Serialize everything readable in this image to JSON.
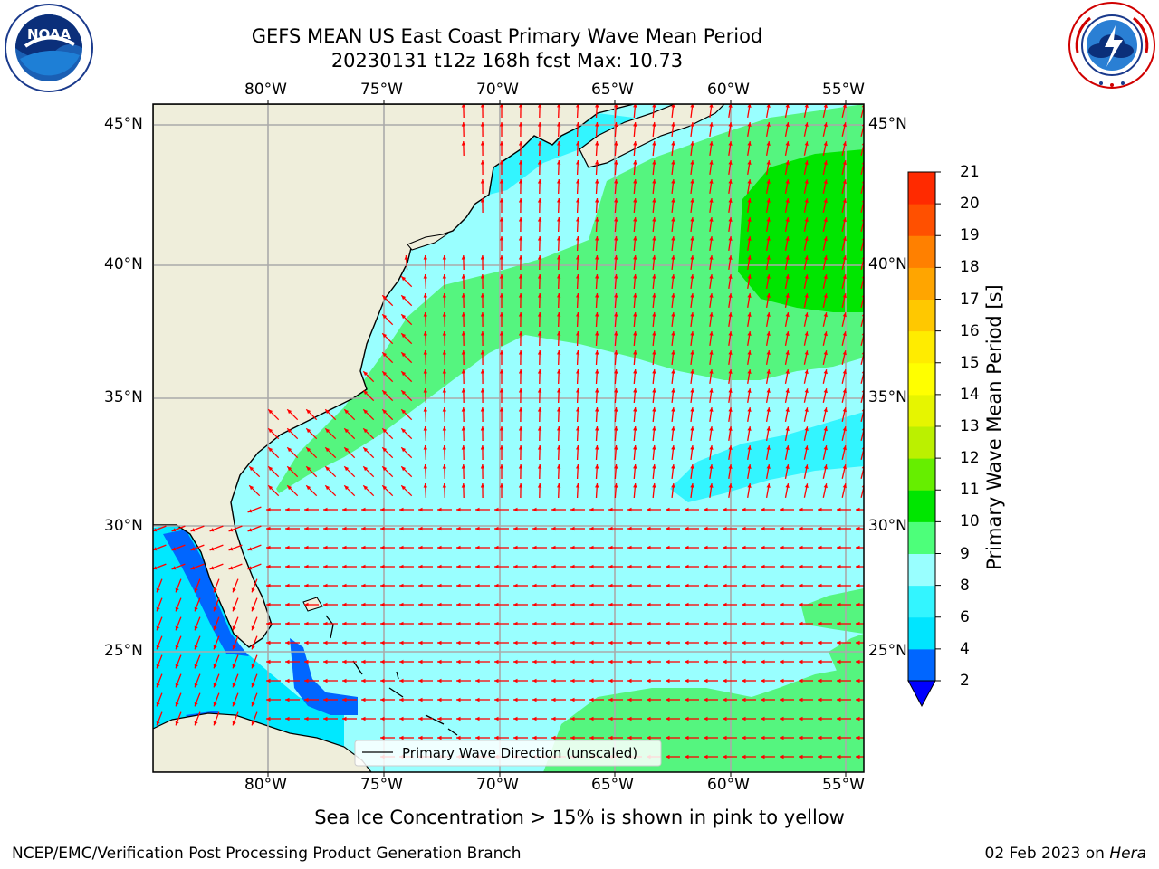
{
  "header": {
    "title_line1": "GEFS MEAN US East Coast Primary Wave Mean Period",
    "title_line2": "20230131 t12z 168h fcst   Max: 10.73"
  },
  "logos": {
    "left": {
      "text": "NOAA",
      "ring_text": "NATIONAL OCEANIC AND ATMOSPHERIC ADMINISTRATION · U.S. DEPARTMENT OF COMMERCE"
    },
    "right": {
      "ring_text": "NATIONAL WEATHER SERVICE"
    }
  },
  "map": {
    "lon_labels": [
      "80°W",
      "75°W",
      "70°W",
      "65°W",
      "60°W",
      "55°W"
    ],
    "lat_labels": [
      "45°N",
      "40°N",
      "35°N",
      "30°N",
      "25°N"
    ],
    "lon_range": [
      -85,
      -54.4
    ],
    "lat_range": [
      20.4,
      45.8
    ],
    "legend_label": "Primary Wave Direction (unscaled)",
    "arrow_color": "#ff0000",
    "land_color": "#efeedb",
    "grid_color": "#aaaaaa"
  },
  "colorbar": {
    "label": "Primary Wave Mean Period [s]",
    "ticks": [
      "2",
      "4",
      "6",
      "8",
      "9",
      "10",
      "11",
      "12",
      "13",
      "14",
      "15",
      "16",
      "17",
      "18",
      "19",
      "20",
      "21"
    ],
    "colors": [
      "#0066ff",
      "#00e5ff",
      "#33f5ff",
      "#99ffff",
      "#4dff7a",
      "#00e600",
      "#66ee00",
      "#bbf000",
      "#e6f500",
      "#ffff00",
      "#ffec00",
      "#ffc800",
      "#ffa500",
      "#ff8000",
      "#ff5000",
      "#ff2a00"
    ],
    "under_color": "#0000ff"
  },
  "footer": {
    "sea_ice_note": "Sea Ice Concentration > 15% is shown in pink to yellow",
    "left": "NCEP/EMC/Verification Post Processing Product Generation Branch",
    "right_date": "02 Feb 2023 on ",
    "right_host": "Hera"
  }
}
